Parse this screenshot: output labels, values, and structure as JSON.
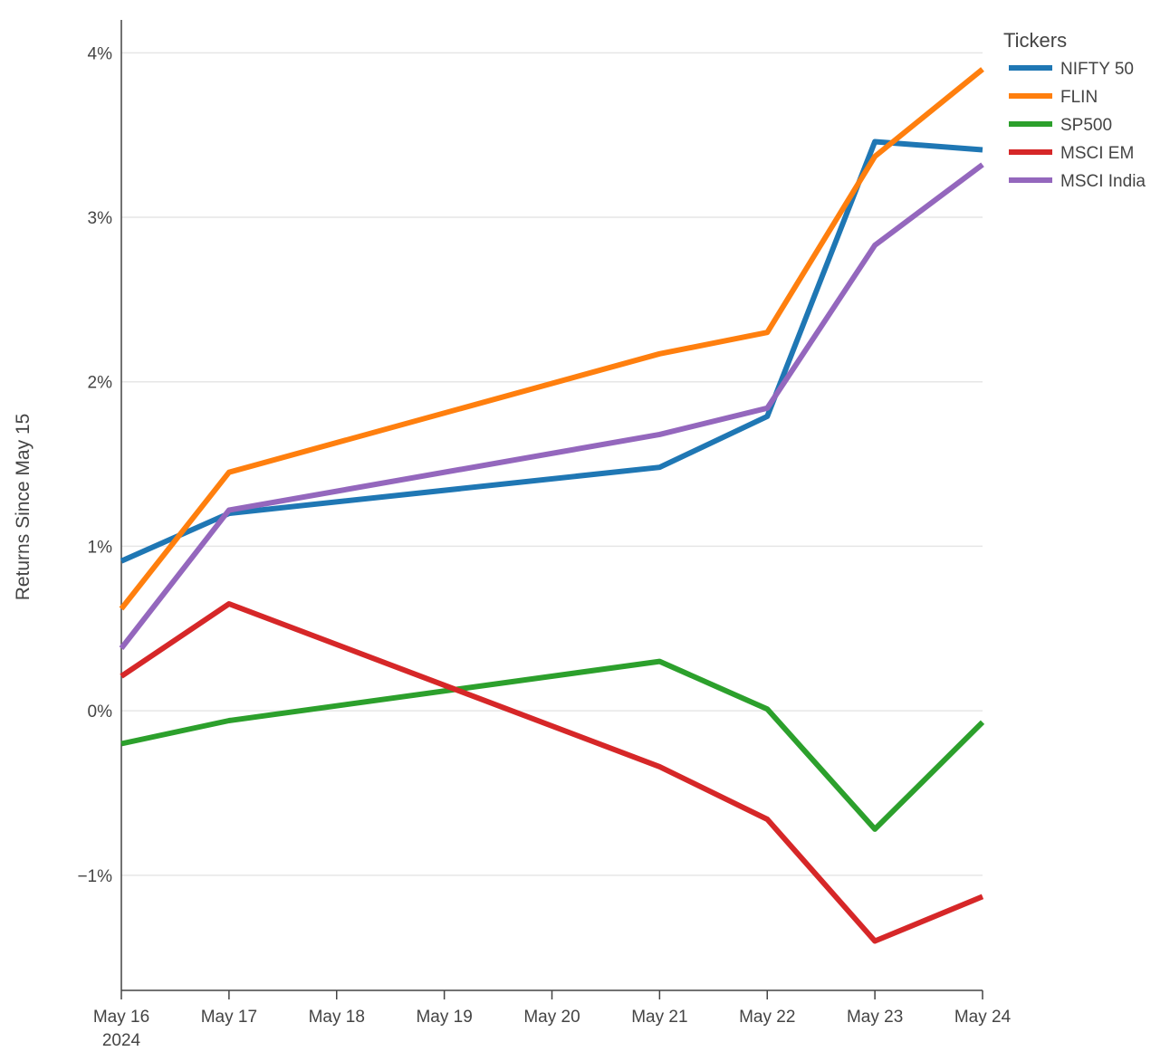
{
  "chart_data": {
    "type": "line",
    "title": "",
    "xlabel": "",
    "ylabel": "Returns Since May 15",
    "x": [
      "2024-05-16",
      "2024-05-17",
      "2024-05-21",
      "2024-05-22",
      "2024-05-23",
      "2024-05-24"
    ],
    "x_ticks": [
      "May 16",
      "May 17",
      "May 18",
      "May 19",
      "May 20",
      "May 21",
      "May 22",
      "May 23",
      "May 24"
    ],
    "x_tick_year": "2024",
    "xlim": [
      "2024-05-16",
      "2024-05-24"
    ],
    "y_ticks": [
      "−1%",
      "0%",
      "1%",
      "2%",
      "3%",
      "4%"
    ],
    "ylim": [
      -1.7,
      4.2
    ],
    "grid": true,
    "legend": {
      "title": "Tickers",
      "placement": "top-right"
    },
    "series": [
      {
        "name": "NIFTY 50",
        "color": "#1f77b4",
        "values": [
          0.91,
          1.2,
          1.48,
          1.79,
          3.46,
          3.41
        ]
      },
      {
        "name": "FLIN",
        "color": "#ff7f0e",
        "values": [
          0.62,
          1.45,
          2.17,
          2.3,
          3.37,
          3.9
        ]
      },
      {
        "name": "SP500",
        "color": "#2ca02c",
        "values": [
          -0.2,
          -0.06,
          0.3,
          0.01,
          -0.72,
          -0.07
        ]
      },
      {
        "name": "MSCI EM",
        "color": "#d62728",
        "values": [
          0.21,
          0.65,
          -0.34,
          -0.66,
          -1.4,
          -1.13
        ]
      },
      {
        "name": "MSCI India",
        "color": "#9467bd",
        "values": [
          0.38,
          1.22,
          1.68,
          1.84,
          2.83,
          3.32
        ]
      }
    ]
  }
}
